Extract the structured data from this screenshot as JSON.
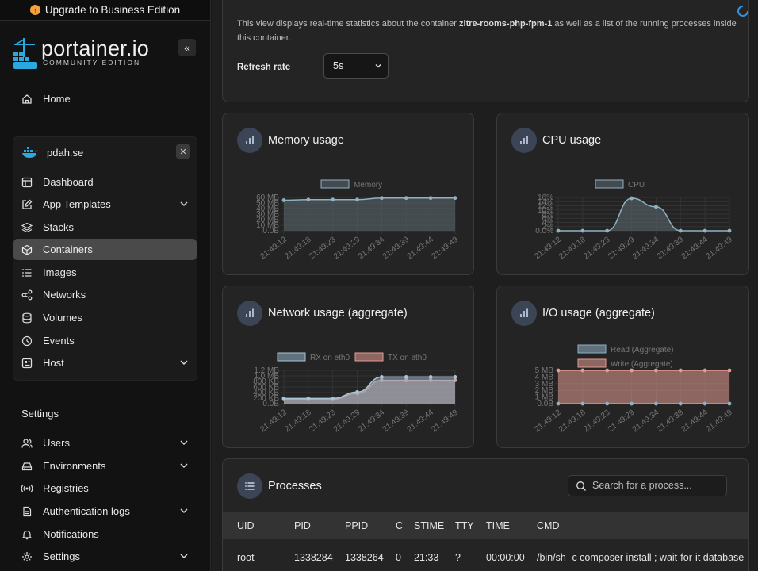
{
  "sidebar": {
    "upgrade_label": "Upgrade to Business Edition",
    "logo_text": "portainer.io",
    "logo_sub": "COMMUNITY EDITION",
    "home_label": "Home",
    "environment": {
      "name": "pdah.se",
      "items": [
        {
          "label": "Dashboard",
          "icon": "dashboard-icon"
        },
        {
          "label": "App Templates",
          "icon": "edit-icon"
        },
        {
          "label": "Stacks",
          "icon": "layers-icon"
        },
        {
          "label": "Containers",
          "icon": "box-icon"
        },
        {
          "label": "Images",
          "icon": "list-icon"
        },
        {
          "label": "Networks",
          "icon": "share-icon"
        },
        {
          "label": "Volumes",
          "icon": "database-icon"
        },
        {
          "label": "Events",
          "icon": "clock-icon"
        },
        {
          "label": "Host",
          "icon": "host-icon"
        }
      ]
    },
    "settings_title": "Settings",
    "settings_items": [
      {
        "label": "Users",
        "icon": "users-icon"
      },
      {
        "label": "Environments",
        "icon": "hdd-icon"
      },
      {
        "label": "Registries",
        "icon": "radio-icon"
      },
      {
        "label": "Authentication logs",
        "icon": "file-icon"
      },
      {
        "label": "Notifications",
        "icon": "bell-icon"
      },
      {
        "label": "Settings",
        "icon": "gear-icon"
      }
    ]
  },
  "top": {
    "desc_prefix": "This view displays real-time statistics about the container ",
    "container_name": "zitre-rooms-php-fpm-1",
    "desc_suffix": " as well as a list of the running processes inside this container.",
    "refresh_label": "Refresh rate",
    "refresh_value": "5s"
  },
  "charts": {
    "memory": {
      "title": "Memory usage"
    },
    "cpu": {
      "title": "CPU usage"
    },
    "network": {
      "title": "Network usage (aggregate)"
    },
    "io": {
      "title": "I/O usage (aggregate)"
    }
  },
  "chart_data": [
    {
      "id": "memory",
      "type": "area",
      "x": [
        "21:49:12",
        "21:49:18",
        "21:49:23",
        "21:49:29",
        "21:49:34",
        "21:49:39",
        "21:49:44",
        "21:49:49"
      ],
      "yticks": [
        "60 MB",
        "50 MB",
        "40 MB",
        "30 MB",
        "20 MB",
        "10 MB",
        "0.0B"
      ],
      "ylim": [
        0,
        60
      ],
      "series": [
        {
          "name": "Memory",
          "values": [
            55,
            56,
            56,
            56,
            59,
            59,
            59,
            59
          ],
          "color": "#5d6b73",
          "line": "#8fb1c4"
        }
      ]
    },
    {
      "id": "cpu",
      "type": "area",
      "x": [
        "21:49:12",
        "21:49:18",
        "21:49:23",
        "21:49:29",
        "21:49:34",
        "21:49:39",
        "21:49:44",
        "21:49:49"
      ],
      "yticks": [
        "16%",
        "14%",
        "12%",
        "10%",
        "8%",
        "6%",
        "4%",
        "2%",
        "0.0%"
      ],
      "ylim": [
        0,
        16
      ],
      "series": [
        {
          "name": "CPU",
          "values": [
            0,
            0,
            0,
            15.6,
            11.5,
            0,
            0,
            0
          ],
          "color": "#5d6b73",
          "line": "#8fb1c4"
        }
      ]
    },
    {
      "id": "network",
      "type": "line",
      "x": [
        "21:49:12",
        "21:49:18",
        "21:49:23",
        "21:49:29",
        "21:49:34",
        "21:49:39",
        "21:49:44",
        "21:49:49"
      ],
      "yticks": [
        "1.2 MB",
        "1.0 MB",
        "800 KB",
        "600 KB",
        "400 KB",
        "200 KB",
        "0.0B"
      ],
      "ylim": [
        0,
        1200
      ],
      "series": [
        {
          "name": "RX on eth0",
          "values": [
            190,
            190,
            190,
            420,
            960,
            960,
            960,
            960
          ],
          "color": "#8fb1c4",
          "line": "#a9c3d3"
        },
        {
          "name": "TX on eth0",
          "values": [
            160,
            160,
            160,
            370,
            840,
            840,
            840,
            840
          ],
          "color": "#e39b94",
          "line": "#e39b94"
        }
      ]
    },
    {
      "id": "io",
      "type": "line",
      "x": [
        "21:49:12",
        "21:49:18",
        "21:49:23",
        "21:49:29",
        "21:49:34",
        "21:49:39",
        "21:49:44",
        "21:49:49"
      ],
      "yticks": [
        "5 MB",
        "4 MB",
        "3 MB",
        "2 MB",
        "1 MB",
        "0.0B"
      ],
      "ylim": [
        0,
        5
      ],
      "series": [
        {
          "name": "Read (Aggregate)",
          "values": [
            0,
            0,
            0,
            0,
            0,
            0,
            0,
            0
          ],
          "color": "#8fb1c4",
          "line": "#8fb1c4"
        },
        {
          "name": "Write (Aggregate)",
          "values": [
            5,
            5,
            5,
            5,
            5,
            5,
            5,
            5
          ],
          "color": "#e39b94",
          "line": "#e39b94"
        }
      ]
    }
  ],
  "processes": {
    "title": "Processes",
    "search_placeholder": "Search for a process...",
    "columns": [
      "UID",
      "PID",
      "PPID",
      "C",
      "STIME",
      "TTY",
      "TIME",
      "CMD"
    ],
    "rows": [
      [
        "root",
        "1338284",
        "1338264",
        "0",
        "21:33",
        "?",
        "00:00:00",
        "/bin/sh -c composer install ; wait-for-it database"
      ]
    ]
  }
}
